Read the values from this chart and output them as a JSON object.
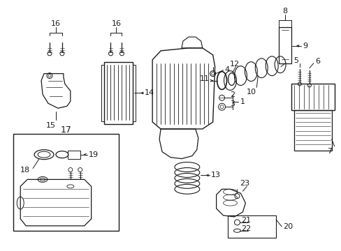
{
  "bg_color": "#ffffff",
  "fig_width": 4.89,
  "fig_height": 3.6,
  "dpi": 100,
  "line_color": "#1a1a1a",
  "text_color": "#1a1a1a",
  "label_fontsize": 7.0
}
